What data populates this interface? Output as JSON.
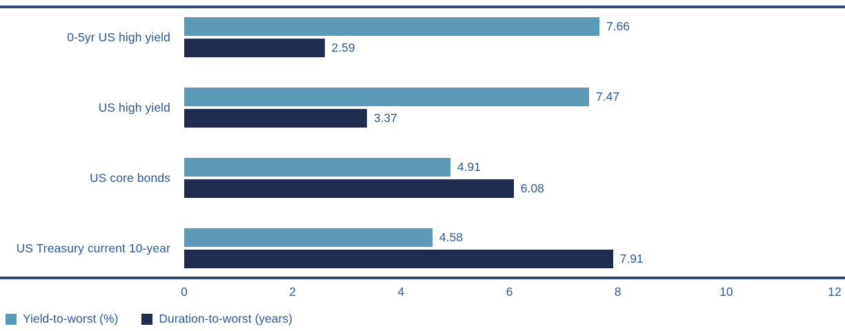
{
  "chart_data": {
    "type": "bar",
    "orientation": "horizontal",
    "categories": [
      "0-5yr US high yield",
      "US high yield",
      "US core bonds",
      "US Treasury current 10-year"
    ],
    "series": [
      {
        "name": "Yield-to-worst (%)",
        "color": "#5b99b8",
        "values": [
          7.66,
          7.47,
          4.91,
          4.58
        ]
      },
      {
        "name": "Duration-to-worst (years)",
        "color": "#1f2c50",
        "values": [
          2.59,
          3.37,
          6.08,
          7.91
        ]
      }
    ],
    "title": "",
    "xlabel": "",
    "ylabel": "",
    "xlim": [
      0,
      12
    ],
    "xticks": [
      0,
      2,
      4,
      6,
      8,
      10,
      12
    ],
    "value_label_decimals": 2,
    "grid": false,
    "legend_position": "bottom-left"
  },
  "colors": {
    "bar_yield": "#5b99b8",
    "bar_duration": "#1f2c50",
    "text": "#2b5aa8",
    "rule": "#32497b",
    "background": "#ffffff"
  }
}
